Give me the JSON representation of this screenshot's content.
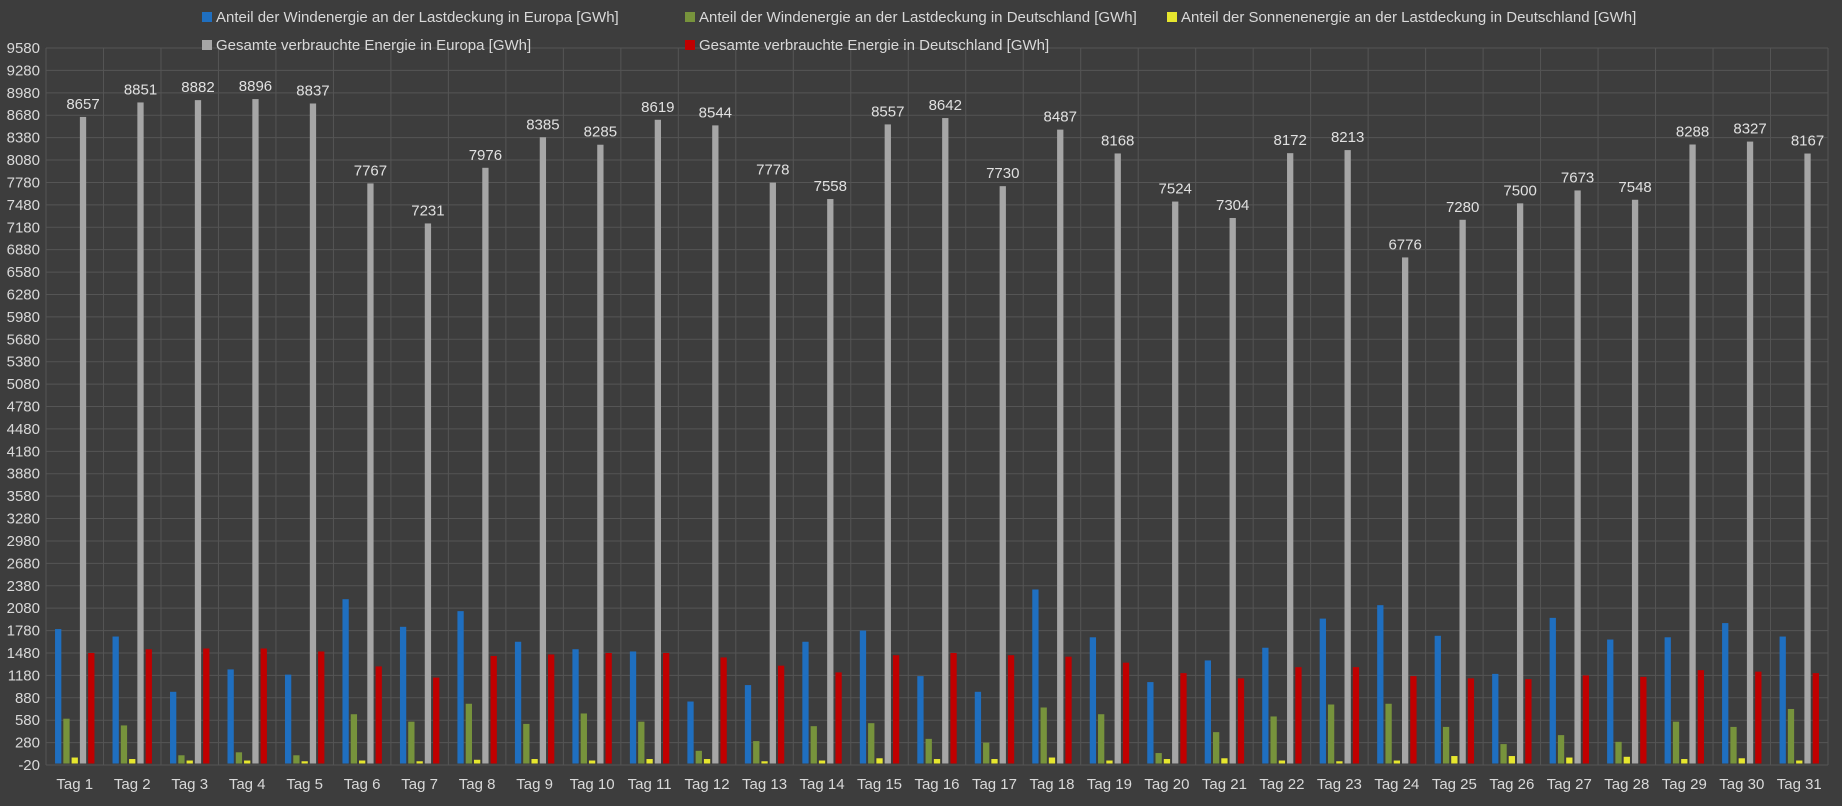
{
  "chart_data": {
    "type": "bar",
    "title": "",
    "xlabel": "",
    "ylabel": "",
    "ylim": [
      -20,
      9580
    ],
    "ytick_step": 300,
    "grid": true,
    "legend_position": "top",
    "categories": [
      "Tag 1",
      "Tag 2",
      "Tag 3",
      "Tag 4",
      "Tag 5",
      "Tag 6",
      "Tag 7",
      "Tag 8",
      "Tag 9",
      "Tag 10",
      "Tag 11",
      "Tag 12",
      "Tag 13",
      "Tag 14",
      "Tag 15",
      "Tag 16",
      "Tag 17",
      "Tag 18",
      "Tag 19",
      "Tag 20",
      "Tag 21",
      "Tag 22",
      "Tag 23",
      "Tag 24",
      "Tag 25",
      "Tag 26",
      "Tag 27",
      "Tag 28",
      "Tag 29",
      "Tag 30",
      "Tag 31"
    ],
    "series": [
      {
        "name": "Anteil der Windenergie an der Lastdeckung in Europa [GWh]",
        "color": "#1f6fc0",
        "values": [
          1800,
          1700,
          960,
          1260,
          1190,
          2200,
          1830,
          2040,
          1630,
          1530,
          1500,
          830,
          1050,
          1630,
          1780,
          1170,
          960,
          2330,
          1690,
          1090,
          1380,
          1550,
          1940,
          2120,
          1710,
          1200,
          1950,
          1660,
          1690,
          1880,
          1700
        ]
      },
      {
        "name": "Anteil der Windenergie an der Lastdeckung in Deutschland [GWh]",
        "color": "#77933c",
        "values": [
          600,
          510,
          110,
          150,
          110,
          660,
          560,
          800,
          530,
          670,
          560,
          170,
          300,
          500,
          540,
          330,
          280,
          750,
          660,
          140,
          420,
          630,
          790,
          800,
          490,
          260,
          380,
          290,
          560,
          490,
          730
        ]
      },
      {
        "name": "Anteil der Sonnenenergie an der Lastdeckung in Deutschland [GWh]",
        "color": "#e6e62e",
        "values": [
          80,
          60,
          40,
          40,
          30,
          40,
          30,
          50,
          60,
          40,
          60,
          60,
          30,
          40,
          70,
          60,
          60,
          80,
          40,
          60,
          70,
          40,
          30,
          40,
          100,
          100,
          80,
          90,
          60,
          70,
          40
        ]
      },
      {
        "name": "Gesamte verbrauchte Energie in Europa [GWh]",
        "color": "#a6a6a6",
        "values": [
          8657,
          8851,
          8882,
          8896,
          8837,
          7767,
          7231,
          7976,
          8385,
          8285,
          8619,
          8544,
          7778,
          7558,
          8557,
          8642,
          7730,
          8487,
          8168,
          7524,
          7304,
          8172,
          8213,
          6776,
          7280,
          7500,
          7673,
          7548,
          8288,
          8327,
          8167
        ],
        "data_labels": true
      },
      {
        "name": "Gesamte verbrauchte Energie in Deutschland [GWh]",
        "color": "#c00000",
        "values": [
          1480,
          1530,
          1540,
          1540,
          1500,
          1300,
          1150,
          1440,
          1460,
          1480,
          1480,
          1420,
          1310,
          1220,
          1450,
          1480,
          1450,
          1430,
          1350,
          1210,
          1140,
          1290,
          1290,
          1170,
          1140,
          1130,
          1180,
          1160,
          1250,
          1230,
          1210
        ]
      }
    ]
  }
}
